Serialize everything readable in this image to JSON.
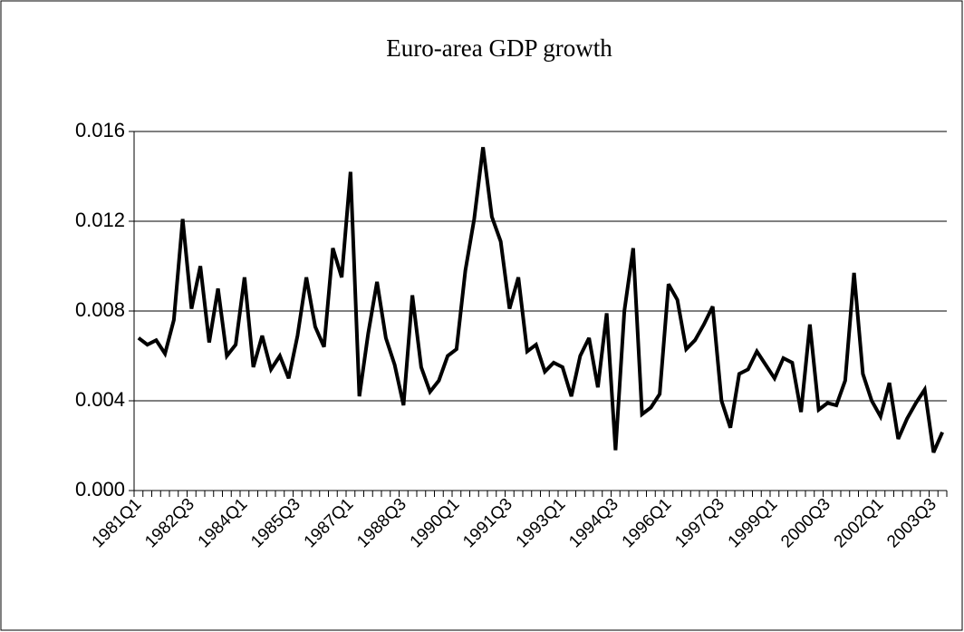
{
  "chart_data": {
    "type": "line",
    "title": "Euro-area GDP growth",
    "categories": [
      "1981Q1",
      null,
      null,
      null,
      null,
      null,
      "1982Q3",
      null,
      null,
      null,
      null,
      null,
      "1984Q1",
      null,
      null,
      null,
      null,
      null,
      "1985Q3",
      null,
      null,
      null,
      null,
      null,
      "1987Q1",
      null,
      null,
      null,
      null,
      null,
      "1988Q3",
      null,
      null,
      null,
      null,
      null,
      "1990Q1",
      null,
      null,
      null,
      null,
      null,
      "1991Q3",
      null,
      null,
      null,
      null,
      null,
      "1993Q1",
      null,
      null,
      null,
      null,
      null,
      "1994Q3",
      null,
      null,
      null,
      null,
      null,
      "1996Q1",
      null,
      null,
      null,
      null,
      null,
      "1997Q3",
      null,
      null,
      null,
      null,
      null,
      "1999Q1",
      null,
      null,
      null,
      null,
      null,
      "2000Q3",
      null,
      null,
      null,
      null,
      null,
      "2002Q1",
      null,
      null,
      null,
      null,
      null,
      "2003Q3",
      null
    ],
    "values": [
      0.0068,
      0.0065,
      0.0067,
      0.0061,
      0.0076,
      0.0121,
      0.0081,
      0.01,
      0.0066,
      0.009,
      0.006,
      0.0065,
      0.0095,
      0.0055,
      0.0069,
      0.0054,
      0.006,
      0.005,
      0.0069,
      0.0095,
      0.0073,
      0.0064,
      0.0108,
      0.0095,
      0.0142,
      0.0042,
      0.007,
      0.0093,
      0.0068,
      0.0056,
      0.0038,
      0.0087,
      0.0055,
      0.0044,
      0.0049,
      0.006,
      0.0063,
      0.0098,
      0.0121,
      0.0153,
      0.0122,
      0.0111,
      0.0081,
      0.0095,
      0.0062,
      0.0065,
      0.0053,
      0.0057,
      0.0055,
      0.0042,
      0.006,
      0.0068,
      0.0046,
      0.0079,
      0.0018,
      0.008,
      0.0108,
      0.0034,
      0.0037,
      0.0043,
      0.0092,
      0.0085,
      0.0063,
      0.0067,
      0.0074,
      0.0082,
      0.004,
      0.0028,
      0.0052,
      0.0054,
      0.0062,
      0.0056,
      0.005,
      0.0059,
      0.0057,
      0.0035,
      0.0074,
      0.0036,
      0.0039,
      0.0038,
      0.0049,
      0.0097,
      0.0052,
      0.004,
      0.0033,
      0.0048,
      0.0023,
      0.0032,
      0.0039,
      0.0045,
      0.0017,
      0.0026
    ],
    "color": "#000000",
    "ylim": [
      0,
      0.016
    ],
    "yticks": [
      {
        "value": 0,
        "label": "0.000"
      },
      0.004,
      0.008,
      0.012,
      0.016
    ],
    "grid": true
  }
}
